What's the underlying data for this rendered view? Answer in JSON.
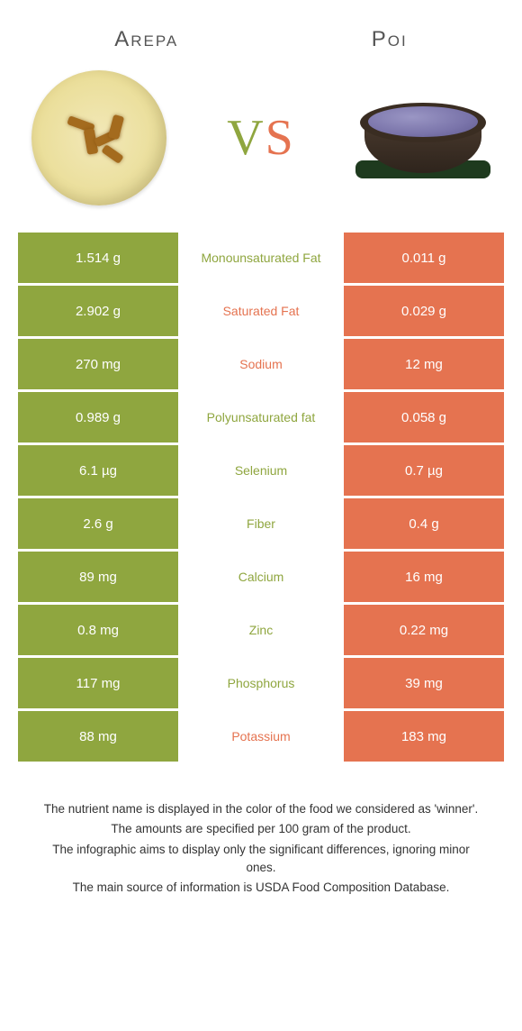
{
  "header": {
    "left_title": "Arepa",
    "right_title": "Poi",
    "vs_v": "V",
    "vs_s": "S"
  },
  "colors": {
    "green": "#8fa63f",
    "orange": "#e57350",
    "white": "#ffffff"
  },
  "rows": [
    {
      "left": "1.514 g",
      "label": "Monounsaturated Fat",
      "right": "0.011 g",
      "winner": "left"
    },
    {
      "left": "2.902 g",
      "label": "Saturated Fat",
      "right": "0.029 g",
      "winner": "right"
    },
    {
      "left": "270 mg",
      "label": "Sodium",
      "right": "12 mg",
      "winner": "right"
    },
    {
      "left": "0.989 g",
      "label": "Polyunsaturated fat",
      "right": "0.058 g",
      "winner": "left"
    },
    {
      "left": "6.1 µg",
      "label": "Selenium",
      "right": "0.7 µg",
      "winner": "left"
    },
    {
      "left": "2.6 g",
      "label": "Fiber",
      "right": "0.4 g",
      "winner": "left"
    },
    {
      "left": "89 mg",
      "label": "Calcium",
      "right": "16 mg",
      "winner": "left"
    },
    {
      "left": "0.8 mg",
      "label": "Zinc",
      "right": "0.22 mg",
      "winner": "left"
    },
    {
      "left": "117 mg",
      "label": "Phosphorus",
      "right": "39 mg",
      "winner": "left"
    },
    {
      "left": "88 mg",
      "label": "Potassium",
      "right": "183 mg",
      "winner": "right"
    }
  ],
  "footnotes": [
    "The nutrient name is displayed in the color of the food we considered as 'winner'.",
    "The amounts are specified per 100 gram of the product.",
    "The infographic aims to display only the significant differences, ignoring minor ones.",
    "The main source of information is USDA Food Composition Database."
  ]
}
